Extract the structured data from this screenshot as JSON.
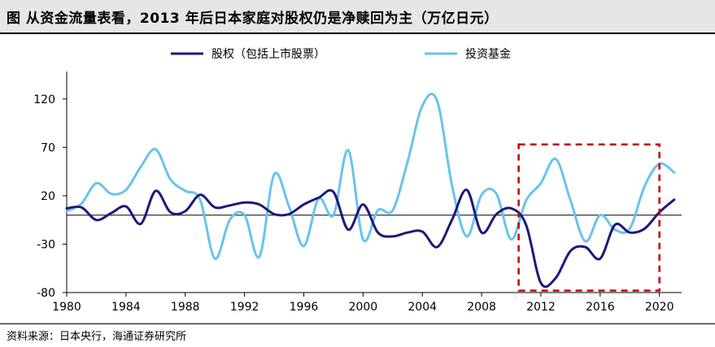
{
  "title": "图  从资金流量表看，2013 年后日本家庭对股权仍是净赎回为主（万亿日元）",
  "source": "资料来源：日本央行，海通证券研究所",
  "colors": {
    "equity": "#1c1a7a",
    "funds": "#69c3ec",
    "highlight": "#c00000",
    "axis": "#000000"
  },
  "chart_data": {
    "type": "line",
    "title": "从资金流量表看，2013 年后日本家庭对股权仍是净赎回为主（万亿日元）",
    "x": [
      1980,
      1981,
      1982,
      1983,
      1984,
      1985,
      1986,
      1987,
      1988,
      1989,
      1990,
      1991,
      1992,
      1993,
      1994,
      1995,
      1996,
      1997,
      1998,
      1999,
      2000,
      2001,
      2002,
      2003,
      2004,
      2005,
      2006,
      2007,
      2008,
      2009,
      2010,
      2011,
      2012,
      2013,
      2014,
      2015,
      2016,
      2017,
      2018,
      2019,
      2020,
      2021
    ],
    "xlabel": "",
    "ylabel": "",
    "ylim": [
      -80,
      145
    ],
    "yticks": [
      120,
      70,
      20,
      -30,
      -80
    ],
    "yticklabels": [
      "120",
      "70",
      "20",
      "-30",
      "-80"
    ],
    "xticks": [
      1980,
      1984,
      1988,
      1992,
      1996,
      2000,
      2004,
      2008,
      2012,
      2016,
      2020
    ],
    "xticklabels": [
      "1980",
      "1984",
      "1988",
      "1992",
      "1996",
      "2000",
      "2004",
      "2008",
      "2012",
      "2016",
      "2020"
    ],
    "grid": false,
    "legend_position": "top",
    "series": [
      {
        "name": "股权（包括上市股票）",
        "color": "#1c1a7a",
        "values": [
          7,
          8,
          -5,
          2,
          9,
          -9,
          25,
          3,
          4,
          21,
          8,
          10,
          13,
          11,
          1,
          1,
          11,
          18,
          24,
          -15,
          11,
          -18,
          -22,
          -18,
          -17,
          -33,
          -5,
          26,
          -18,
          1,
          7,
          -10,
          -70,
          -65,
          -37,
          -33,
          -45,
          -10,
          -18,
          -14,
          3,
          16
        ]
      },
      {
        "name": "投资基金",
        "color": "#69c3ec",
        "values": [
          4,
          12,
          33,
          22,
          26,
          50,
          68,
          37,
          25,
          16,
          -45,
          -5,
          0,
          -43,
          42,
          9,
          -32,
          17,
          0,
          67,
          -25,
          5,
          5,
          55,
          113,
          118,
          31,
          -22,
          21,
          22,
          -25,
          15,
          33,
          58,
          15,
          -27,
          0,
          -15,
          -14,
          30,
          53,
          44
        ]
      }
    ],
    "annotations": [
      {
        "type": "dashed-box",
        "x_from": 2010.5,
        "x_to": 2020,
        "y_from": -78,
        "y_to": 73,
        "color": "#c00000"
      }
    ]
  }
}
